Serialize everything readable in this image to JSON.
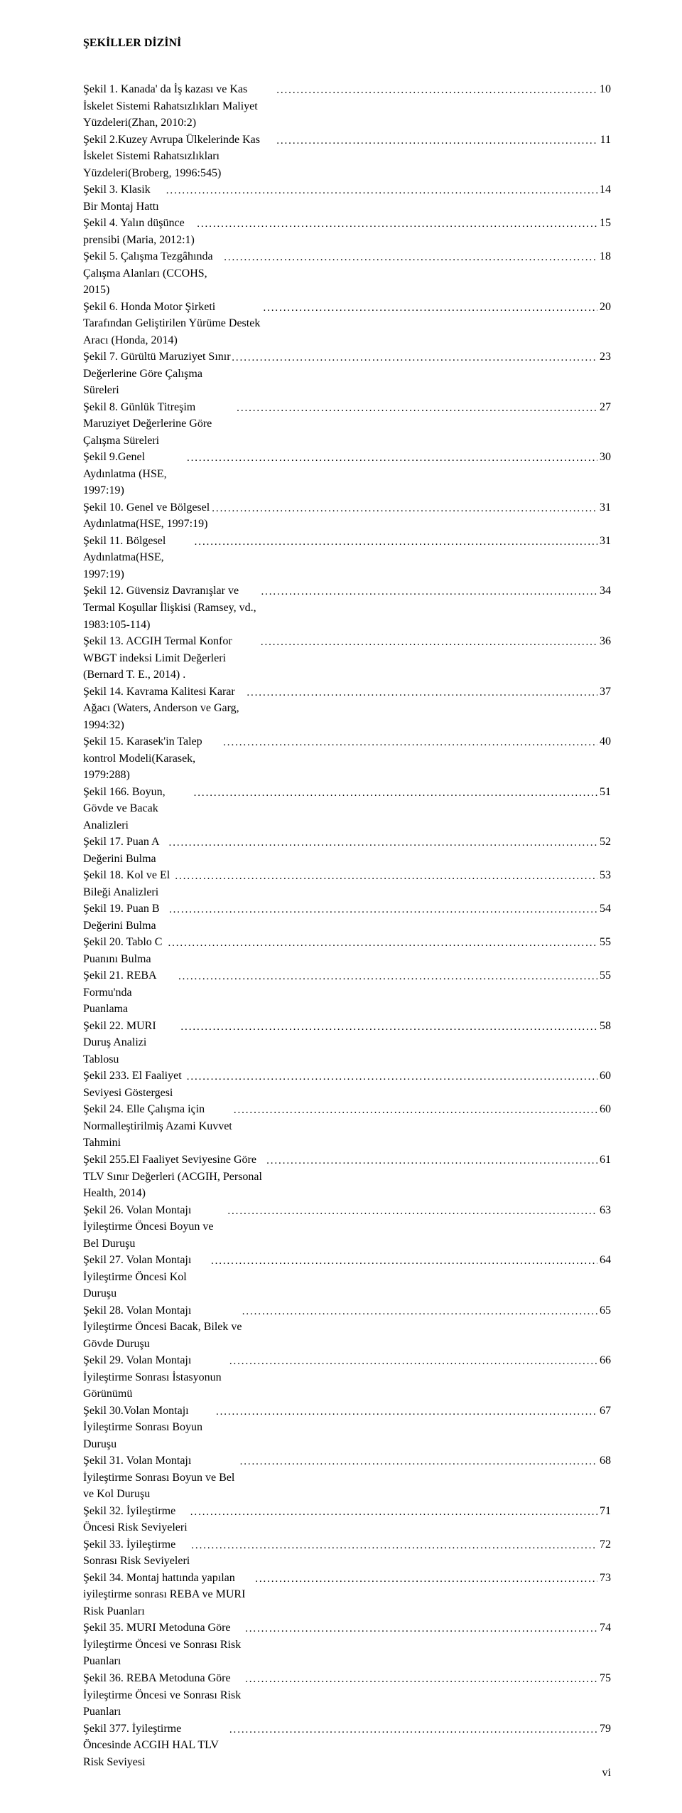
{
  "heading": "ŞEKİLLER DİZİNİ",
  "entries": [
    {
      "text": "Şekil 1. Kanada' da İş kazası ve Kas İskelet Sistemi Rahatsızlıkları Maliyet Yüzdeleri(Zhan, 2010:2)",
      "page": "10"
    },
    {
      "text": "Şekil 2.Kuzey Avrupa Ülkelerinde Kas İskelet Sistemi Rahatsızlıkları Yüzdeleri(Broberg, 1996:545)",
      "page": "11"
    },
    {
      "text": "Şekil 3. Klasik Bir Montaj Hattı",
      "page": "14"
    },
    {
      "text": "Şekil 4. Yalın düşünce prensibi (Maria, 2012:1)",
      "page": "15"
    },
    {
      "text": "Şekil 5. Çalışma Tezgâhında Çalışma Alanları (CCOHS, 2015)",
      "page": "18"
    },
    {
      "text": "Şekil 6. Honda Motor Şirketi Tarafından Geliştirilen Yürüme Destek Aracı (Honda, 2014)",
      "page": "20"
    },
    {
      "text": "Şekil 7. Gürültü Maruziyet Sınır Değerlerine Göre Çalışma Süreleri",
      "page": "23"
    },
    {
      "text": "Şekil 8. Günlük Titreşim Maruziyet Değerlerine Göre Çalışma Süreleri",
      "page": "27"
    },
    {
      "text": "Şekil 9.Genel Aydınlatma (HSE, 1997:19)",
      "page": "30"
    },
    {
      "text": "Şekil 10. Genel ve Bölgesel Aydınlatma(HSE, 1997:19)",
      "page": "31"
    },
    {
      "text": "Şekil 11. Bölgesel Aydınlatma(HSE, 1997:19)",
      "page": "31"
    },
    {
      "text": "Şekil 12.  Güvensiz Davranışlar ve Termal Koşullar İlişkisi (Ramsey, vd., 1983:105-114)",
      "page": "34"
    },
    {
      "text": "Şekil 13. ACGIH Termal Konfor WBGT indeksi Limit Değerleri (Bernard T. E., 2014) .",
      "page": "36"
    },
    {
      "text": "Şekil 14. Kavrama Kalitesi Karar Ağacı (Waters, Anderson ve Garg, 1994:32)",
      "page": "37"
    },
    {
      "text": "Şekil 15. Karasek'in Talep kontrol Modeli(Karasek, 1979:288)",
      "page": "40"
    },
    {
      "text": "Şekil 166. Boyun, Gövde ve Bacak Analizleri",
      "page": "51"
    },
    {
      "text": "Şekil 17. Puan A Değerini Bulma",
      "page": "52"
    },
    {
      "text": "Şekil 18. Kol ve El Bileği Analizleri",
      "page": "53"
    },
    {
      "text": "Şekil 19.  Puan B Değerini Bulma",
      "page": "54"
    },
    {
      "text": "Şekil 20. Tablo C Puanını Bulma",
      "page": "55"
    },
    {
      "text": "Şekil 21. REBA Formu'nda Puanlama",
      "page": "55"
    },
    {
      "text": "Şekil 22. MURI Duruş Analizi Tablosu",
      "page": "58"
    },
    {
      "text": "Şekil 233. El Faaliyet Seviyesi Göstergesi",
      "page": "60"
    },
    {
      "text": "Şekil 24. Elle Çalışma için Normalleştirilmiş Azami Kuvvet Tahmini",
      "page": "60"
    },
    {
      "text": "Şekil 255.El Faaliyet Seviyesine Göre TLV Sınır Değerleri (ACGIH, Personal Health, 2014)",
      "page": "61"
    },
    {
      "text": "Şekil 26. Volan Montajı İyileştirme Öncesi Boyun ve Bel Duruşu",
      "page": "63"
    },
    {
      "text": "Şekil 27. Volan Montajı İyileştirme Öncesi Kol Duruşu",
      "page": "64"
    },
    {
      "text": "Şekil 28. Volan Montajı İyileştirme Öncesi Bacak, Bilek ve Gövde Duruşu",
      "page": "65"
    },
    {
      "text": "Şekil 29. Volan Montajı İyileştirme Sonrası İstasyonun Görünümü",
      "page": "66"
    },
    {
      "text": "Şekil 30.Volan Montajı İyileştirme Sonrası Boyun Duruşu",
      "page": "67"
    },
    {
      "text": "Şekil 31. Volan Montajı İyileştirme Sonrası Boyun ve Bel ve Kol Duruşu",
      "page": "68"
    },
    {
      "text": "Şekil 32. İyileştirme Öncesi Risk Seviyeleri",
      "page": "71"
    },
    {
      "text": "Şekil 33. İyileştirme Sonrası Risk Seviyeleri",
      "page": "72"
    },
    {
      "text": "Şekil 34. Montaj hattında yapılan iyileştirme sonrası REBA ve MURI  Risk Puanları",
      "page": "73"
    },
    {
      "text": "Şekil 35. MURI Metoduna Göre İyileştirme Öncesi ve Sonrası Risk Puanları",
      "page": "74"
    },
    {
      "text": "Şekil 36. REBA Metoduna Göre İyileştirme Öncesi ve Sonrası Risk Puanları",
      "page": "75"
    },
    {
      "text": "Şekil 377. İyileştirme Öncesinde ACGIH HAL TLV Risk Seviyesi",
      "page": "79"
    }
  ],
  "footer_page_number": "vi"
}
